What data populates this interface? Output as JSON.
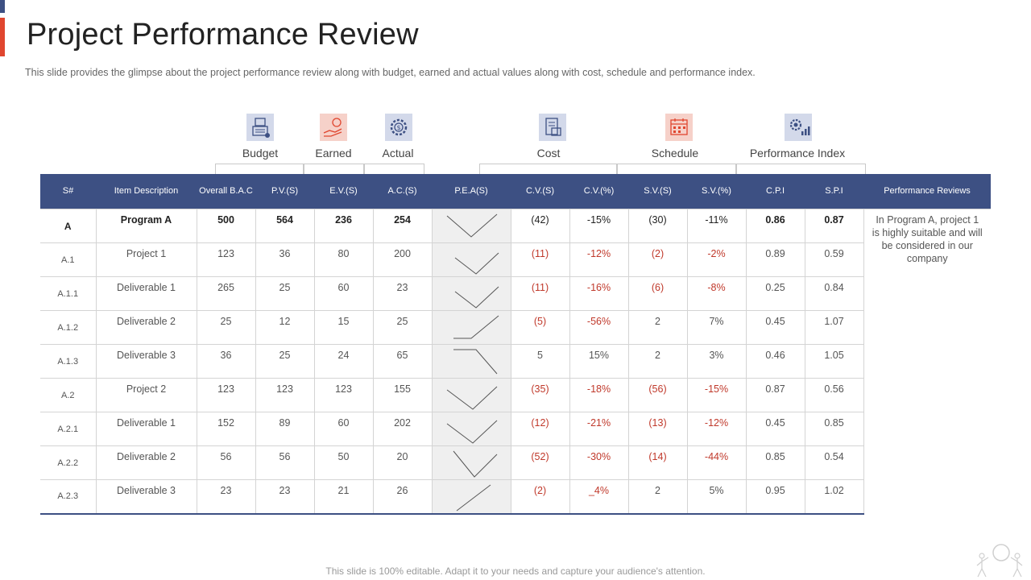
{
  "title": "Project Performance Review",
  "subtitle": "This slide provides  the glimpse about the project performance  review  along with budget,  earned and actual values  along with cost, schedule and performance  index.",
  "categories": [
    {
      "label": "Budget",
      "icon": "calculator-icon"
    },
    {
      "label": "Earned",
      "icon": "hand-coin-icon"
    },
    {
      "label": "Actual",
      "icon": "gear-dollar-icon"
    },
    {
      "label": "Cost",
      "icon": "money-icon"
    },
    {
      "label": "Schedule",
      "icon": "calendar-icon"
    },
    {
      "label": "Performance Index",
      "icon": "gear-chart-icon"
    }
  ],
  "colors": {
    "header": "#3d5083",
    "accent": "#e0462f",
    "negative": "#c0392b",
    "icon_blue_bg": "#d3d9ea",
    "icon_red_bg": "#f6d1c9"
  },
  "table": {
    "headers": [
      "S#",
      "Item Description",
      "Overall B.A.C",
      "P.V.(S)",
      "E.V.(S)",
      "A.C.(S)",
      "P.E.A(S)",
      "C.V.(S)",
      "C.V.(%)",
      "S.V.(S)",
      "S.V.(%)",
      "C.P.I",
      "S.P.I",
      "Performance Reviews"
    ],
    "rows": [
      {
        "sn": "A",
        "desc": "Program A",
        "bac": "500",
        "pv": "564",
        "ev": "236",
        "ac": "254",
        "cv": "(42)",
        "cvp": "-15%",
        "sv": "(30)",
        "svp": "-11%",
        "cpi": "0.86",
        "spi": "0.87"
      },
      {
        "sn": "A.1",
        "desc": "Project 1",
        "bac": "123",
        "pv": "36",
        "ev": "80",
        "ac": "200",
        "cv": "(11)",
        "cvp": "-12%",
        "sv": "(2)",
        "svp": "-2%",
        "cpi": "0.89",
        "spi": "0.59"
      },
      {
        "sn": "A.1.1",
        "desc": "Deliverable  1",
        "bac": "265",
        "pv": "25",
        "ev": "60",
        "ac": "23",
        "cv": "(11)",
        "cvp": "-16%",
        "sv": "(6)",
        "svp": "-8%",
        "cpi": "0.25",
        "spi": "0.84"
      },
      {
        "sn": "A.1.2",
        "desc": "Deliverable  2",
        "bac": "25",
        "pv": "12",
        "ev": "15",
        "ac": "25",
        "cv": "(5)",
        "cvp": "-56%",
        "sv": "2",
        "svp": "7%",
        "cpi": "0.45",
        "spi": "1.07"
      },
      {
        "sn": "A.1.3",
        "desc": "Deliverable  3",
        "bac": "36",
        "pv": "25",
        "ev": "24",
        "ac": "65",
        "cv": "5",
        "cvp": "15%",
        "sv": "2",
        "svp": "3%",
        "cpi": "0.46",
        "spi": "1.05"
      },
      {
        "sn": "A.2",
        "desc": "Project 2",
        "bac": "123",
        "pv": "123",
        "ev": "123",
        "ac": "155",
        "cv": "(35)",
        "cvp": "-18%",
        "sv": "(56)",
        "svp": "-15%",
        "cpi": "0.87",
        "spi": "0.56"
      },
      {
        "sn": "A.2.1",
        "desc": "Deliverable  1",
        "bac": "152",
        "pv": "89",
        "ev": "60",
        "ac": "202",
        "cv": "(12)",
        "cvp": "-21%",
        "sv": "(13)",
        "svp": "-12%",
        "cpi": "0.45",
        "spi": "0.85"
      },
      {
        "sn": "A.2.2",
        "desc": "Deliverable  2",
        "bac": "56",
        "pv": "56",
        "ev": "50",
        "ac": "20",
        "cv": "(52)",
        "cvp": "-30%",
        "sv": "(14)",
        "svp": "-44%",
        "cpi": "0.85",
        "spi": "0.54"
      },
      {
        "sn": "A.2.3",
        "desc": "Deliverable  3",
        "bac": "23",
        "pv": "23",
        "ev": "21",
        "ac": "26",
        "cv": "(2)",
        "cvp": "_4%",
        "sv": "2",
        "svp": "5%",
        "cpi": "0.95",
        "spi": "1.02"
      }
    ],
    "review_text": "In Program A, project 1 is highly suitable and will be considered in our company"
  },
  "footer": "This slide is 100% editable. Adapt it to your needs and capture your audience's attention."
}
